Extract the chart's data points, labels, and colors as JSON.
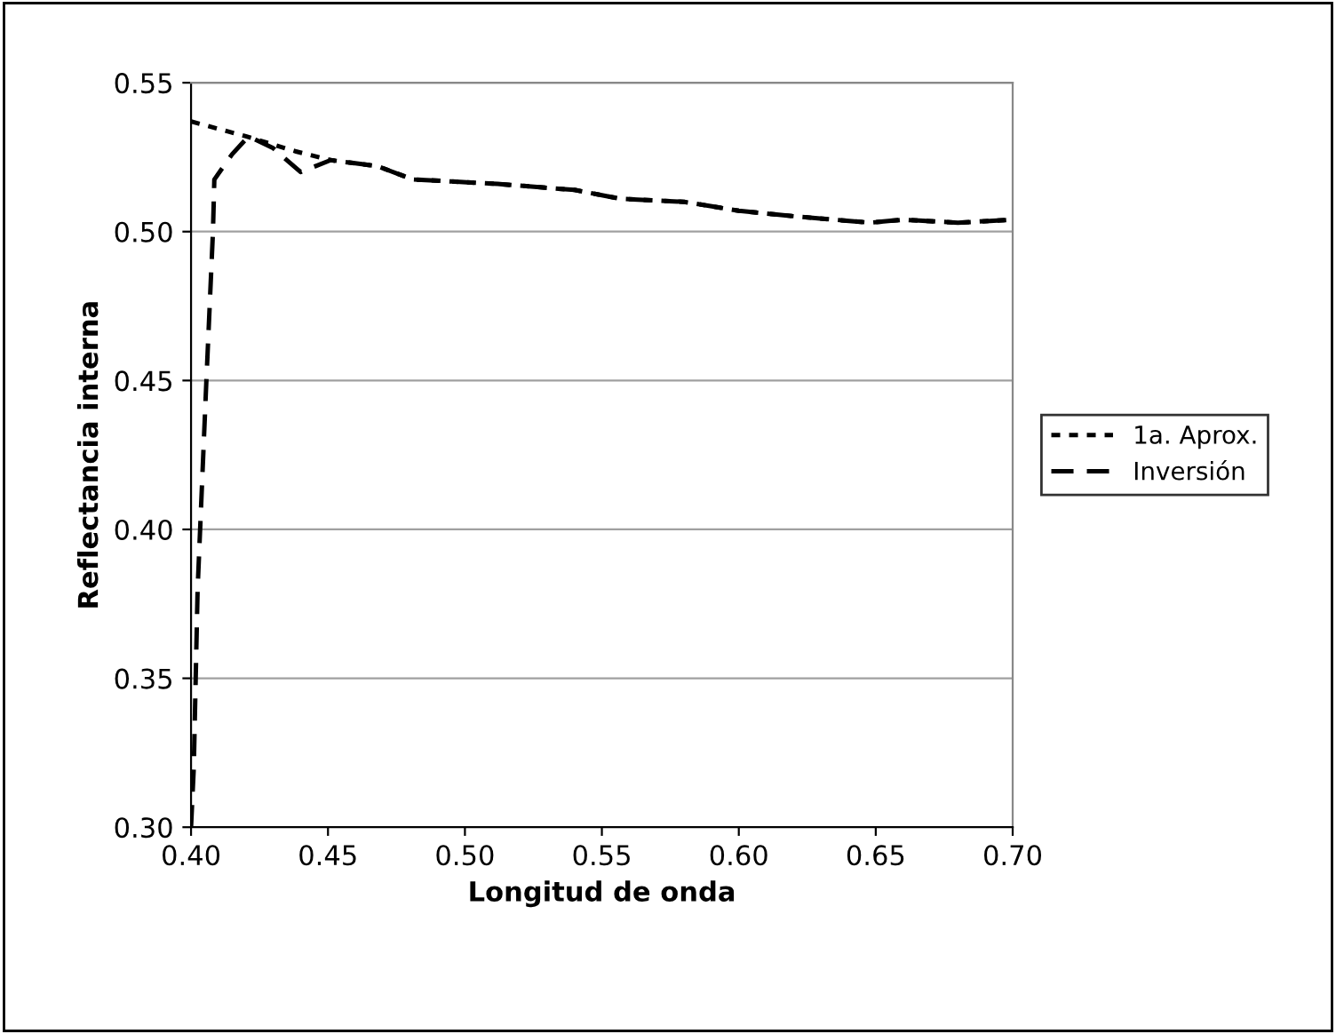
{
  "chart_data": {
    "type": "line",
    "xlabel": "Longitud de onda",
    "ylabel": "Reflectancia interna",
    "xlim": [
      0.4,
      0.7
    ],
    "xticks": [
      {
        "value": 0.4,
        "label": "0.40"
      },
      0.45,
      {
        "value": 0.5,
        "label": "0.50"
      },
      0.55,
      {
        "value": 0.6,
        "label": "0.60"
      },
      0.65,
      {
        "value": 0.7,
        "label": "0.70"
      }
    ],
    "ylim": [
      0.3,
      0.55
    ],
    "yticks": [
      {
        "value": 0.3,
        "label": "0.30"
      },
      0.35,
      {
        "value": 0.4,
        "label": "0.40"
      },
      0.45,
      {
        "value": 0.5,
        "label": "0.50"
      },
      0.55
    ],
    "grid": "y",
    "legend": "right",
    "series": [
      {
        "name": "1a. Aprox.",
        "color": "#000000",
        "line_style": "dotted",
        "x": [
          0.4,
          0.42,
          0.438,
          0.451,
          0.468,
          0.481,
          0.492,
          0.512,
          0.54,
          0.557,
          0.58,
          0.6,
          0.622,
          0.648,
          0.66,
          0.68,
          0.7
        ],
        "values": [
          0.537,
          0.532,
          0.527,
          0.524,
          0.522,
          0.5175,
          0.517,
          0.516,
          0.514,
          0.511,
          0.51,
          0.507,
          0.505,
          0.503,
          0.504,
          0.503,
          0.504
        ]
      },
      {
        "name": "Inversión",
        "color": "#000000",
        "line_style": "dashed",
        "x": [
          0.4,
          0.401,
          0.4024,
          0.4056,
          0.408,
          0.4085,
          0.415,
          0.421,
          0.43,
          0.44,
          0.451,
          0.468,
          0.481,
          0.492,
          0.512,
          0.54,
          0.557,
          0.58,
          0.6,
          0.622,
          0.648,
          0.66,
          0.68,
          0.7
        ],
        "values": [
          0.3,
          0.32,
          0.38,
          0.45,
          0.5,
          0.5175,
          0.526,
          0.532,
          0.528,
          0.52,
          0.524,
          0.522,
          0.5175,
          0.517,
          0.516,
          0.514,
          0.511,
          0.51,
          0.507,
          0.505,
          0.503,
          0.504,
          0.503,
          0.504
        ]
      }
    ]
  }
}
